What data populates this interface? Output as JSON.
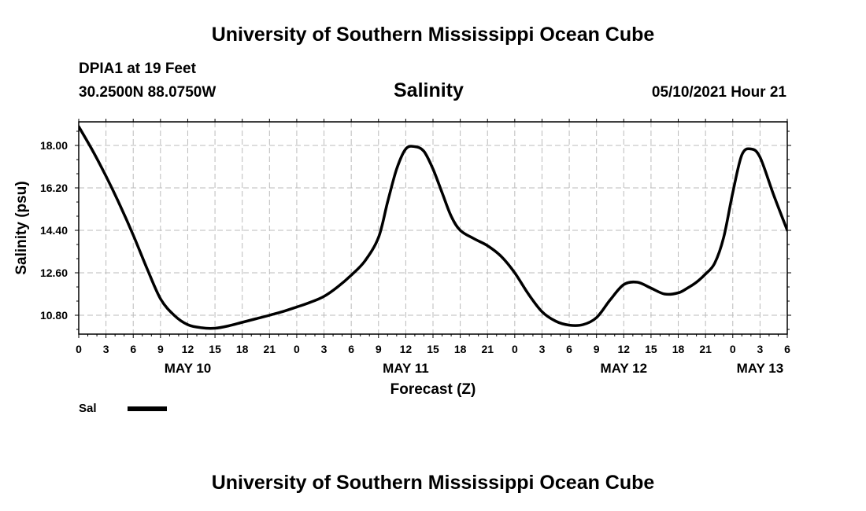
{
  "header": {
    "top_title": "University of Southern Mississippi Ocean Cube",
    "bottom_title": "University of Southern Mississippi Ocean Cube",
    "station": "DPIA1 at 19 Feet",
    "coords": "30.2500N  88.0750W",
    "datetime": "05/10/2021 Hour 21"
  },
  "chart_data": {
    "type": "line",
    "title": "Salinity",
    "xlabel": "Forecast (Z)",
    "ylabel": "Salinity (psu)",
    "xlim": [
      0,
      78
    ],
    "ylim": [
      10.0,
      19.0
    ],
    "y_ticks": [
      10.8,
      12.6,
      14.4,
      16.2,
      18.0
    ],
    "y_tick_labels": [
      "10.80",
      "12.60",
      "14.40",
      "16.20",
      "18.00"
    ],
    "x_ticks": [
      0,
      3,
      6,
      9,
      12,
      15,
      18,
      21,
      24,
      27,
      30,
      33,
      36,
      39,
      42,
      45,
      48,
      51,
      54,
      57,
      60,
      63,
      66,
      69,
      72,
      75,
      78
    ],
    "x_tick_labels": [
      "0",
      "3",
      "6",
      "9",
      "12",
      "15",
      "18",
      "21",
      "0",
      "3",
      "6",
      "9",
      "12",
      "15",
      "18",
      "21",
      "0",
      "3",
      "6",
      "9",
      "12",
      "15",
      "18",
      "21",
      "0",
      "3",
      "6"
    ],
    "date_labels": [
      {
        "x": 12,
        "label": "MAY 10"
      },
      {
        "x": 36,
        "label": "MAY 11"
      },
      {
        "x": 60,
        "label": "MAY 12"
      },
      {
        "x": 75,
        "label": "MAY 13"
      }
    ],
    "grid": true,
    "series": [
      {
        "name": "Sal",
        "x": [
          0,
          1.5,
          3,
          4.5,
          6,
          7.5,
          9,
          10.5,
          12,
          13.5,
          15,
          16.5,
          18,
          19.5,
          21,
          22.5,
          24,
          25.5,
          27,
          28.5,
          30,
          31.5,
          33,
          34,
          35,
          36,
          37,
          38,
          39,
          40,
          41,
          42,
          43.5,
          45,
          46.5,
          48,
          49.5,
          51,
          52.5,
          54,
          55.5,
          57,
          58.5,
          60,
          61.5,
          63,
          64.5,
          66,
          67,
          68,
          69,
          70,
          71,
          72,
          73,
          74,
          75,
          76.5,
          78
        ],
        "values": [
          18.8,
          17.8,
          16.7,
          15.5,
          14.2,
          12.8,
          11.5,
          10.8,
          10.4,
          10.27,
          10.25,
          10.35,
          10.5,
          10.65,
          10.8,
          10.96,
          11.15,
          11.35,
          11.6,
          12.0,
          12.5,
          13.1,
          14.1,
          15.6,
          17.0,
          17.85,
          17.95,
          17.75,
          17.0,
          16.0,
          15.0,
          14.4,
          14.05,
          13.75,
          13.3,
          12.6,
          11.7,
          10.95,
          10.55,
          10.38,
          10.4,
          10.7,
          11.45,
          12.1,
          12.2,
          11.95,
          11.7,
          11.75,
          11.95,
          12.2,
          12.55,
          13.0,
          14.1,
          16.0,
          17.6,
          17.85,
          17.5,
          15.9,
          14.4
        ]
      }
    ],
    "legend": [
      {
        "label": "Sal",
        "placement": "bottom-left"
      }
    ],
    "colors": {
      "line": "#000000",
      "grid": "#bbbbbb"
    }
  }
}
